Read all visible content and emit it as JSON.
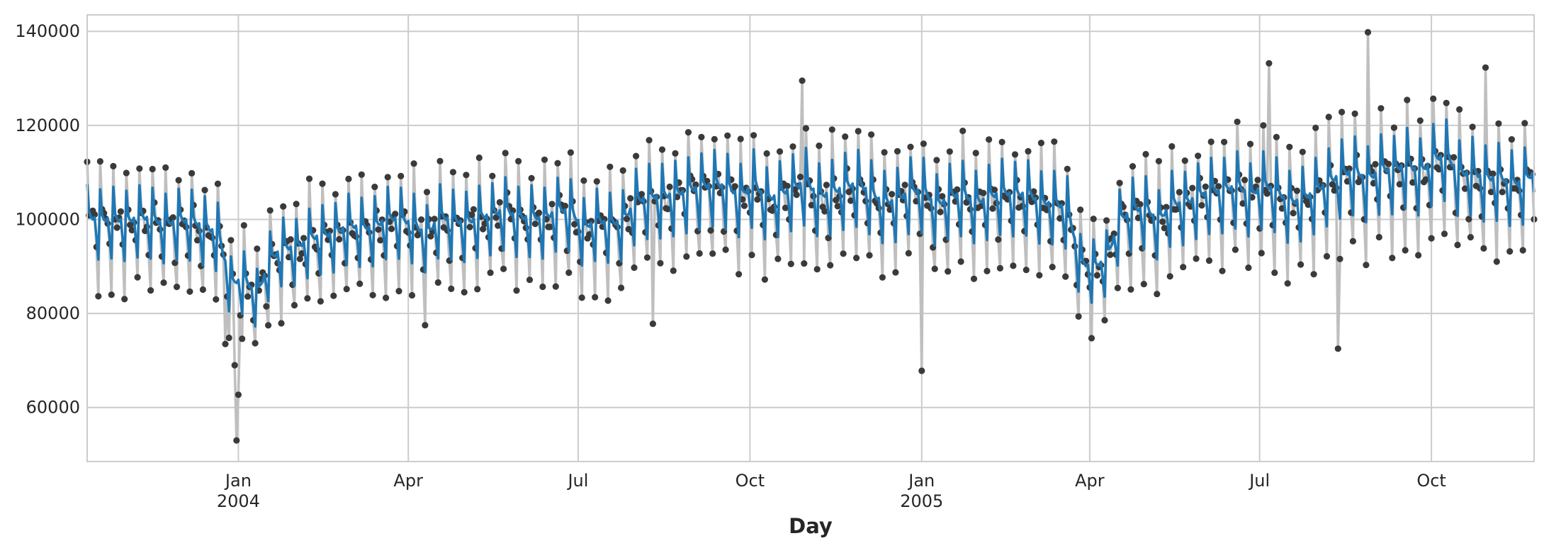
{
  "chart_data": {
    "type": "line",
    "title": "",
    "xlabel": "Day",
    "ylabel": "",
    "x_range": [
      "2003-10-12",
      "2005-11-25"
    ],
    "ylim": [
      48500,
      143500
    ],
    "grid": true,
    "legend": "none",
    "y_ticks": [
      60000,
      80000,
      100000,
      120000,
      140000
    ],
    "y_tick_labels": [
      "60000",
      "80000",
      "100000",
      "120000",
      "140000"
    ],
    "x_ticks": [
      {
        "date": "2004-01-01",
        "label": "Jan",
        "sublabel": "2004"
      },
      {
        "date": "2004-04-01",
        "label": "Apr",
        "sublabel": ""
      },
      {
        "date": "2004-07-01",
        "label": "Jul",
        "sublabel": ""
      },
      {
        "date": "2004-10-01",
        "label": "Oct",
        "sublabel": ""
      },
      {
        "date": "2005-01-01",
        "label": "Jan",
        "sublabel": "2005"
      },
      {
        "date": "2005-04-01",
        "label": "Apr",
        "sublabel": ""
      },
      {
        "date": "2005-07-01",
        "label": "Jul",
        "sublabel": ""
      },
      {
        "date": "2005-10-01",
        "label": "Oct",
        "sublabel": ""
      }
    ],
    "series": [
      {
        "role": "observed daily values (points joined by line)",
        "point_color": "#3a3a3a",
        "line_color": "#bfbfbf",
        "daily": {
          "start": "2003-10-12",
          "weekly_pattern": [
            1.098,
            1.005,
            0.99,
            0.982,
            0.992,
            0.925,
            0.848
          ],
          "weekly_level": [
            101500,
            100500,
            101000,
            100200,
            101300,
            100800,
            99600,
            100600,
            100400,
            99100,
            97800,
            87000,
            88000,
            84500,
            92000,
            94800,
            94500,
            96600,
            97300,
            97700,
            99600,
            98800,
            99100,
            101000,
            100800,
            99600,
            97300,
            101500,
            100400,
            100000,
            101200,
            101700,
            102900,
            101000,
            101300,
            100800,
            102800,
            102500,
            98700,
            100600,
            99800,
            100300,
            104600,
            105600,
            105600,
            106200,
            106900,
            107700,
            108400,
            107600,
            105600,
            108500,
            104900,
            106100,
            107500,
            108800,
            105700,
            106400,
            107800,
            108400,
            106300,
            104200,
            104800,
            106900,
            106800,
            103500,
            105600,
            106200,
            104200,
            105400,
            106600,
            106000,
            106300,
            104100,
            104200,
            103100,
            91500,
            90400,
            92200,
            100400,
            102800,
            103100,
            100300,
            104200,
            104000,
            105700,
            106800,
            106800,
            108100,
            105700,
            108100,
            106900,
            104200,
            105000,
            106800,
            108700,
            110500,
            111100,
            109100,
            111500,
            111200,
            112800,
            110700,
            113600,
            114500,
            110300,
            111000,
            109300,
            109800,
            108300,
            108900,
            111500,
            110100,
            113700,
            111300,
            109800,
            109600,
            110800,
            111500,
            111200
          ]
        },
        "extreme_points": [
          {
            "x": "2003-12-31",
            "y": 53000
          },
          {
            "x": "2004-01-01",
            "y": 62700
          },
          {
            "x": "2003-12-30",
            "y": 69000
          },
          {
            "x": "2003-12-25",
            "y": 73500
          },
          {
            "x": "2004-04-10",
            "y": 77500
          },
          {
            "x": "2004-08-10",
            "y": 77800
          },
          {
            "x": "2005-01-01",
            "y": 67800
          },
          {
            "x": "2005-08-12",
            "y": 72500
          },
          {
            "x": "2005-08-28",
            "y": 139800
          },
          {
            "x": "2004-10-29",
            "y": 129500
          },
          {
            "x": "2005-07-06",
            "y": 133200
          },
          {
            "x": "2005-10-30",
            "y": 132300
          }
        ]
      },
      {
        "role": "fitted / smoothed line",
        "line_color": "#1f77b4",
        "daily_from_observed": "same weekly_level with damped weekly_pattern (factor 0.6)"
      }
    ]
  }
}
